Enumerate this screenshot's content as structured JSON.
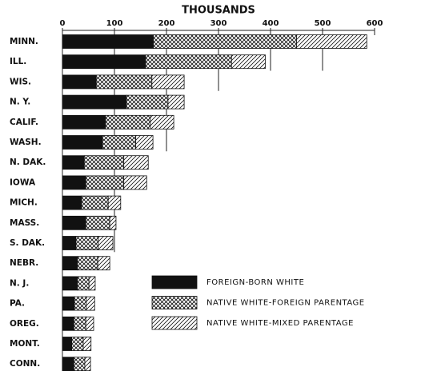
{
  "chart_data": {
    "type": "stacked_bar_horizontal",
    "title": "THOUSANDS",
    "categories": [
      "MINN.",
      "ILL.",
      "WIS.",
      "N. Y.",
      "CALIF.",
      "WASH.",
      "N. DAK.",
      "IOWA",
      "MICH.",
      "MASS.",
      "S. DAK.",
      "NEBR.",
      "N. J.",
      "PA.",
      "OREG.",
      "MONT.",
      "CONN."
    ],
    "series": [
      {
        "name": "FOREIGN-BORN WHITE",
        "color": "#111111",
        "pattern": "solid",
        "values": [
          175,
          160,
          65,
          123,
          83,
          77,
          42,
          45,
          37,
          45,
          26,
          29,
          29,
          23,
          22,
          18,
          22
        ]
      },
      {
        "name": "NATIVE WHITE-FOREIGN PARENTAGE",
        "color": "#111111",
        "pattern": "crosshatch",
        "values": [
          275,
          165,
          107,
          80,
          86,
          64,
          76,
          73,
          51,
          46,
          43,
          39,
          22,
          23,
          23,
          22,
          21
        ]
      },
      {
        "name": "NATIVE WHITE-MIXED PARENTAGE",
        "color": "#111111",
        "pattern": "hatch",
        "values": [
          135,
          65,
          62,
          31,
          45,
          33,
          47,
          44,
          24,
          12,
          28,
          23,
          12,
          16,
          15,
          15,
          11
        ]
      }
    ],
    "xlim": [
      0,
      600
    ],
    "xticks": [
      0,
      100,
      200,
      300,
      400,
      500,
      600
    ],
    "grid": true
  }
}
